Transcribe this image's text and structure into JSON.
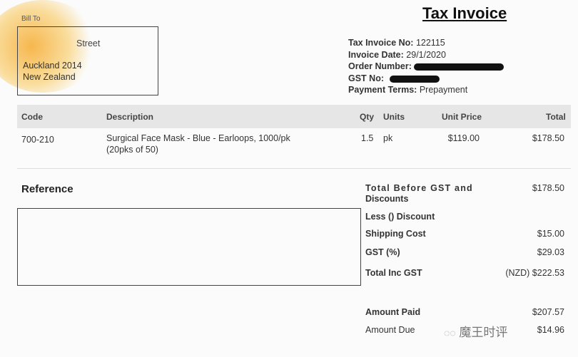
{
  "title": "Tax Invoice",
  "bill_to": {
    "label": "Bill To",
    "street": "Street",
    "city": "Auckland 2014",
    "country": "New Zealand"
  },
  "meta": [
    {
      "label": "Tax Invoice No:",
      "value": "122115"
    },
    {
      "label": "Invoice Date:",
      "value": "29/1/2020"
    },
    {
      "label": "Order Number:",
      "value": ""
    },
    {
      "label": "GST No:",
      "value": ""
    },
    {
      "label": "Payment Terms:",
      "value": "Prepayment"
    }
  ],
  "table": {
    "headers": [
      "Code",
      "Description",
      "Qty",
      "Units",
      "Unit Price",
      "Total"
    ],
    "rows": [
      {
        "code": "700-210",
        "description": "Surgical Face Mask - Blue - Earloops, 1000/pk",
        "description2": "(20pks of 50)",
        "qty": "1.5",
        "units": "pk",
        "unit_price": "$119.00",
        "total": "$178.50"
      }
    ]
  },
  "reference_label": "Reference",
  "totals": [
    {
      "label": "Total Before GST and",
      "label2": "Discounts",
      "value": "$178.50"
    },
    {
      "label": "Less () Discount",
      "value": ""
    },
    {
      "label": "Shipping Cost",
      "value": "$15.00"
    },
    {
      "label": "GST (%)",
      "value": "$29.03"
    },
    {
      "label": "Total Inc GST",
      "value": "(NZD) $222.53"
    }
  ],
  "amount_paid": {
    "label": "Amount Paid",
    "value": "$207.57"
  },
  "amount_due": {
    "label": "Amount Due",
    "value": "$14.96"
  },
  "watermark": "魔王时评",
  "colors": {
    "highlight": "#f5a014",
    "header_bg": "#e6e6e6"
  }
}
